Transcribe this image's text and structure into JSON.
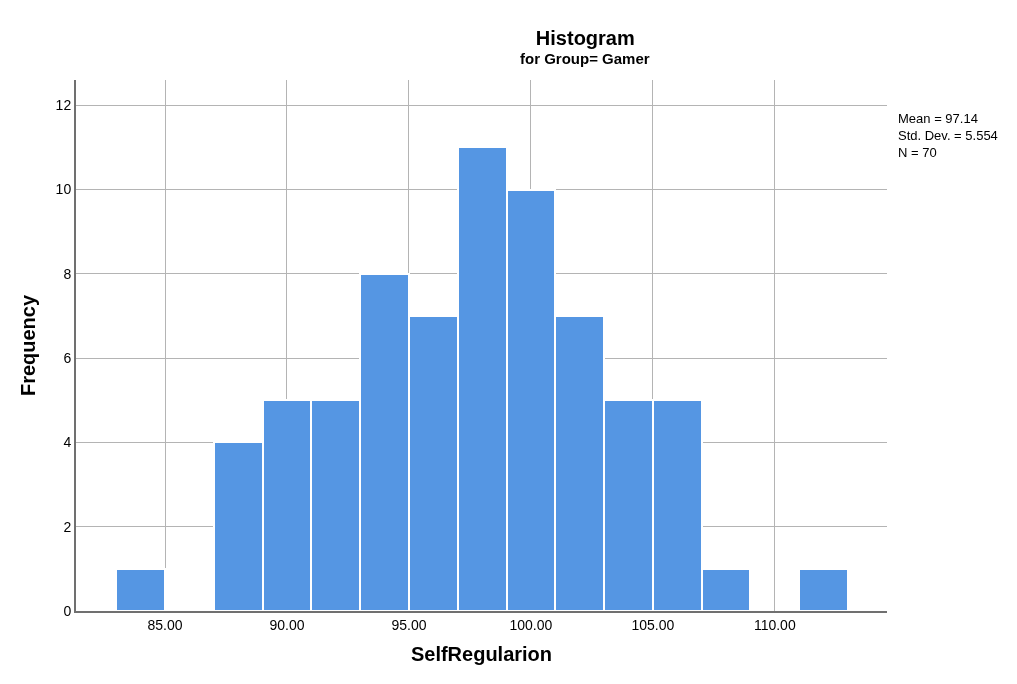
{
  "chart_data": {
    "type": "histogram",
    "title": "Histogram",
    "subtitle": "for Group= Gamer",
    "xlabel": "SelfRegularion",
    "ylabel": "Frequency",
    "bins": [
      83,
      85,
      87,
      89,
      91,
      93,
      95,
      97,
      99,
      101,
      103,
      105,
      107,
      109,
      111,
      113
    ],
    "values": [
      1,
      0,
      4,
      5,
      5,
      8,
      7,
      11,
      10,
      7,
      5,
      5,
      1,
      0,
      1
    ],
    "color": "#5596e3",
    "xlim": [
      81.35,
      114.6
    ],
    "xticks": [
      {
        "value": 85,
        "label": "85.00"
      },
      {
        "value": 90,
        "label": "90.00"
      },
      {
        "value": 95,
        "label": "95.00"
      },
      {
        "value": 100,
        "label": "100.00"
      },
      {
        "value": 105,
        "label": "105.00"
      },
      {
        "value": 110,
        "label": "110.00"
      }
    ],
    "ylim": [
      0,
      12.6
    ],
    "yticks": [
      0,
      2,
      4,
      6,
      8,
      10,
      12
    ],
    "grid": true,
    "annotations": [
      "Mean = 97.14\nStd. Dev. = 5.554\nN = 70"
    ]
  }
}
